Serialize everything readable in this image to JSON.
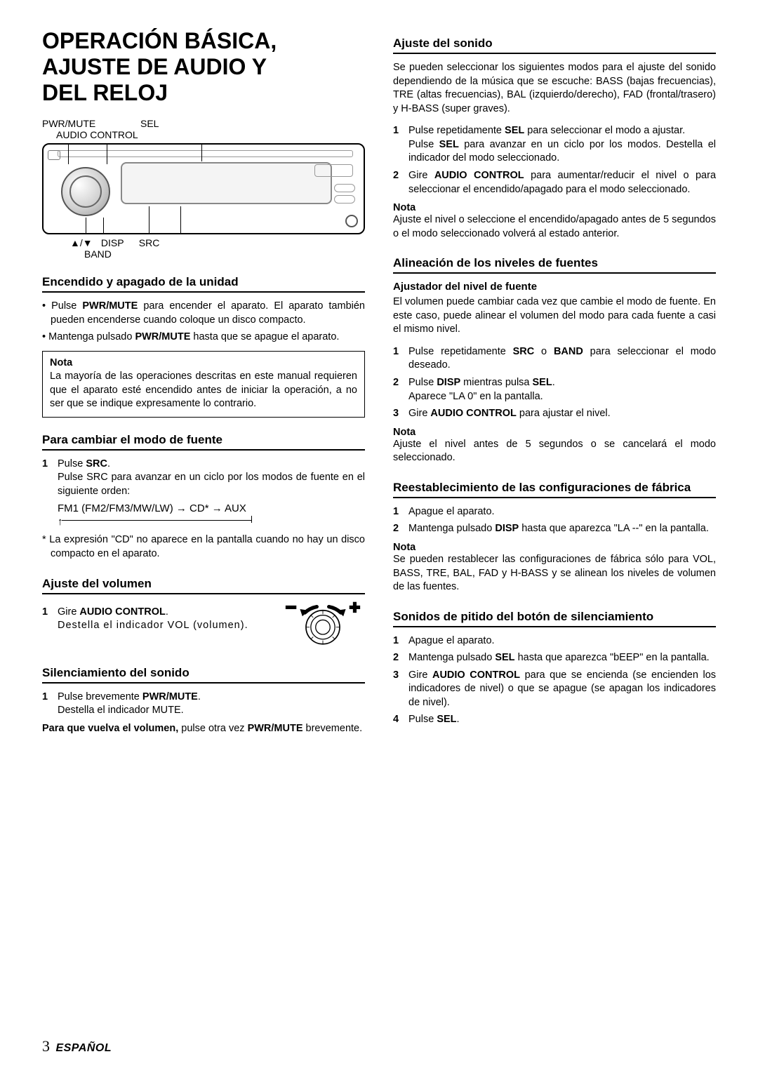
{
  "page": {
    "title_line1": "OPERACIÓN BÁSICA,",
    "title_line2": "AJUSTE DE AUDIO Y",
    "title_line3": "DEL RELOJ",
    "number": "3",
    "language": "ESPAÑOL"
  },
  "diagram": {
    "top_labels": {
      "pwr_mute": "PWR/MUTE",
      "sel": "SEL",
      "audio_control": "AUDIO CONTROL"
    },
    "bottom_labels": {
      "arrows": "▲/▼",
      "disp": "DISP",
      "src": "SRC",
      "band": "BAND"
    }
  },
  "left": {
    "encendido": {
      "heading": "Encendido y apagado de la unidad",
      "bullets": [
        "Pulse <b>PWR/MUTE</b> para encender el aparato. El aparato también pueden encenderse cuando coloque un disco compacto.",
        "Mantenga pulsado <b>PWR/MUTE</b> hasta que se apague el aparato."
      ],
      "note_label": "Nota",
      "note_text": "La mayoría de las operaciones descritas en este manual requieren que el aparato esté encendido antes de iniciar la operación, a no ser que se indique expresamente lo contrario."
    },
    "modo_fuente": {
      "heading": "Para cambiar el modo de fuente",
      "step1_a": "Pulse <b>SRC</b>.",
      "step1_b": "Pulse SRC para avanzar en un ciclo por los modos de fuente en el siguiente orden:",
      "cycle": "FM1 (FM2/FM3/MW/LW) → CD* → AUX",
      "footnote": "* La expresión \"CD\" no aparece en la pantalla cuando no hay un disco compacto en el aparato."
    },
    "volumen": {
      "heading": "Ajuste del volumen",
      "step1": "Gire <b>AUDIO CONTROL</b>.",
      "step1b": "Destella el indicador VOL (volumen)."
    },
    "silenciamiento": {
      "heading": "Silenciamiento del sonido",
      "step1": "Pulse brevemente <b>PWR/MUTE</b>.",
      "step1b": "Destella el indicador MUTE.",
      "after": "<b>Para que vuelva el volumen,</b> pulse otra vez <b>PWR/MUTE</b> brevemente."
    }
  },
  "right": {
    "sonido": {
      "heading": "Ajuste del sonido",
      "intro": "Se pueden seleccionar los siguientes modos para el ajuste del sonido dependiendo de la música que se escuche: BASS (bajas frecuencias), TRE (altas frecuencias), BAL (izquierdo/derecho), FAD (frontal/trasero) y H-BASS (super graves).",
      "step1a": "Pulse repetidamente <b>SEL</b> para seleccionar el modo a ajustar.",
      "step1b": "Pulse <b>SEL</b> para avanzar en un ciclo por los modos. Destella el indicador del modo seleccionado.",
      "step2": "Gire <b>AUDIO CONTROL</b> para aumentar/reducir el nivel o para seleccionar el encendido/apagado para el modo seleccionado.",
      "note_label": "Nota",
      "note_text": "Ajuste el nivel o seleccione el encendido/apagado antes de 5 segundos o el modo seleccionado volverá al estado anterior."
    },
    "alineacion": {
      "heading": "Alineación de los niveles de fuentes",
      "subhead": "Ajustador del nivel de fuente",
      "intro": "El volumen puede cambiar cada vez que cambie el modo de fuente. En este caso, puede alinear el volumen del modo para cada fuente a casi el mismo nivel.",
      "step1": "Pulse repetidamente <b>SRC</b> o <b>BAND</b> para seleccionar el modo deseado.",
      "step2a": "Pulse <b>DISP</b> mientras pulsa <b>SEL</b>.",
      "step2b": "Aparece \"LA 0\" en la pantalla.",
      "step3": "Gire <b>AUDIO CONTROL</b> para ajustar el nivel.",
      "note_label": "Nota",
      "note_text": "Ajuste el nivel antes de 5 segundos o se cancelará el modo seleccionado."
    },
    "reset": {
      "heading": "Reestablecimiento de las configuraciones de fábrica",
      "step1": "Apague el aparato.",
      "step2": "Mantenga pulsado <b>DISP</b> hasta que aparezca \"LA --\" en la pantalla.",
      "note_label": "Nota",
      "note_text": "Se pueden restablecer las configuraciones de fábrica sólo para VOL, BASS, TRE, BAL, FAD y H-BASS y se alinean los niveles de volumen de las fuentes."
    },
    "pitido": {
      "heading": "Sonidos de pitido del botón de silenciamiento",
      "step1": "Apague el aparato.",
      "step2": "Mantenga pulsado <b>SEL</b> hasta que aparezca \"bEEP\" en la pantalla.",
      "step3": "Gire <b>AUDIO CONTROL</b> para que se encienda (se encienden los indicadores de nivel) o que se apague (se apagan los indicadores de nivel).",
      "step4": "Pulse <b>SEL</b>."
    }
  }
}
